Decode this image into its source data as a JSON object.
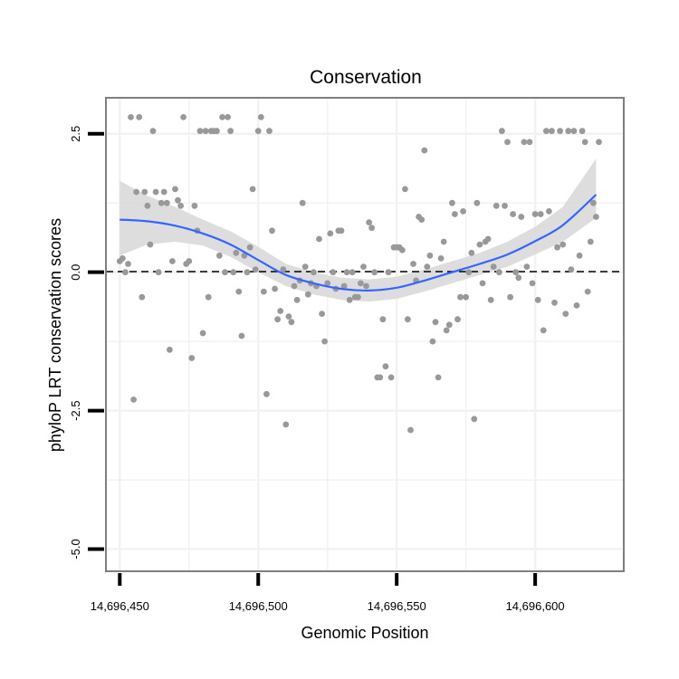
{
  "chart_data": {
    "type": "scatter",
    "title": "Conservation",
    "xlabel": "Genomic Position",
    "ylabel": "phyloP LRT conservation scores",
    "xlim": [
      14696445,
      14696632
    ],
    "ylim": [
      -5.4,
      3.15
    ],
    "x_ticks": [
      14696450,
      14696500,
      14696550,
      14696600
    ],
    "x_tick_labels": [
      "14,696,450",
      "14,696,500",
      "14,696,550",
      "14,696,600"
    ],
    "y_ticks": [
      2.5,
      0.0,
      -2.5,
      -5.0
    ],
    "y_tick_labels": [
      "2.5",
      "0.0",
      "-2.5",
      "-5.0"
    ],
    "grid": true,
    "reference_line": {
      "y": 0,
      "style": "dashed",
      "color": "#000000"
    },
    "colors": {
      "points": "#999999",
      "smooth": "#3366ff",
      "band": "#d9d9d9",
      "grid": "#f2f2f2",
      "frame": "#7f7f7f"
    },
    "series": [
      {
        "name": "phyloP score",
        "kind": "points",
        "points": [
          [
            14696450,
            0.2
          ],
          [
            14696451,
            0.25
          ],
          [
            14696452,
            0.0
          ],
          [
            14696453,
            0.15
          ],
          [
            14696454,
            2.8
          ],
          [
            14696455,
            -2.3
          ],
          [
            14696456,
            1.45
          ],
          [
            14696457,
            2.8
          ],
          [
            14696458,
            -0.45
          ],
          [
            14696459,
            1.45
          ],
          [
            14696460,
            1.2
          ],
          [
            14696461,
            0.5
          ],
          [
            14696462,
            2.55
          ],
          [
            14696463,
            1.45
          ],
          [
            14696464,
            0.0
          ],
          [
            14696465,
            1.25
          ],
          [
            14696466,
            1.45
          ],
          [
            14696467,
            1.25
          ],
          [
            14696468,
            -1.4
          ],
          [
            14696469,
            0.2
          ],
          [
            14696470,
            1.5
          ],
          [
            14696471,
            1.3
          ],
          [
            14696472,
            1.2
          ],
          [
            14696473,
            2.8
          ],
          [
            14696474,
            0.15
          ],
          [
            14696475,
            0.2
          ],
          [
            14696476,
            -1.55
          ],
          [
            14696477,
            1.2
          ],
          [
            14696478,
            0.75
          ],
          [
            14696479,
            2.55
          ],
          [
            14696480,
            -1.1
          ],
          [
            14696481,
            2.55
          ],
          [
            14696482,
            -0.45
          ],
          [
            14696483,
            2.55
          ],
          [
            14696484,
            2.55
          ],
          [
            14696485,
            2.55
          ],
          [
            14696486,
            0.3
          ],
          [
            14696487,
            2.8
          ],
          [
            14696488,
            0.0
          ],
          [
            14696489,
            2.8
          ],
          [
            14696490,
            2.55
          ],
          [
            14696491,
            0.0
          ],
          [
            14696492,
            0.35
          ],
          [
            14696493,
            -0.35
          ],
          [
            14696494,
            -1.15
          ],
          [
            14696495,
            0.3
          ],
          [
            14696496,
            0.0
          ],
          [
            14696497,
            0.45
          ],
          [
            14696498,
            1.5
          ],
          [
            14696499,
            0.05
          ],
          [
            14696500,
            2.55
          ],
          [
            14696501,
            2.8
          ],
          [
            14696502,
            -0.35
          ],
          [
            14696503,
            -2.2
          ],
          [
            14696504,
            2.55
          ],
          [
            14696505,
            0.75
          ],
          [
            14696506,
            -0.3
          ],
          [
            14696507,
            -0.85
          ],
          [
            14696508,
            -0.7
          ],
          [
            14696509,
            0.05
          ],
          [
            14696510,
            -2.75
          ],
          [
            14696511,
            -0.8
          ],
          [
            14696512,
            -0.9
          ],
          [
            14696513,
            -0.25
          ],
          [
            14696514,
            -0.5
          ],
          [
            14696515,
            -0.15
          ],
          [
            14696516,
            1.25
          ],
          [
            14696517,
            0.1
          ],
          [
            14696518,
            -0.4
          ],
          [
            14696519,
            -0.2
          ],
          [
            14696520,
            0.0
          ],
          [
            14696521,
            -0.25
          ],
          [
            14696522,
            0.6
          ],
          [
            14696523,
            -0.75
          ],
          [
            14696524,
            -1.25
          ],
          [
            14696525,
            -0.2
          ],
          [
            14696526,
            0.7
          ],
          [
            14696527,
            0.0
          ],
          [
            14696528,
            -0.3
          ],
          [
            14696529,
            0.75
          ],
          [
            14696530,
            0.75
          ],
          [
            14696531,
            -0.25
          ],
          [
            14696532,
            0.0
          ],
          [
            14696533,
            -0.5
          ],
          [
            14696534,
            0.0
          ],
          [
            14696535,
            -0.45
          ],
          [
            14696536,
            -0.45
          ],
          [
            14696537,
            -0.2
          ],
          [
            14696538,
            0.1
          ],
          [
            14696539,
            -0.25
          ],
          [
            14696540,
            0.9
          ],
          [
            14696541,
            0.8
          ],
          [
            14696542,
            0.0
          ],
          [
            14696543,
            -1.9
          ],
          [
            14696544,
            -1.9
          ],
          [
            14696545,
            -0.85
          ],
          [
            14696546,
            -1.7
          ],
          [
            14696547,
            0.0
          ],
          [
            14696548,
            -1.9
          ],
          [
            14696549,
            0.45
          ],
          [
            14696550,
            0.45
          ],
          [
            14696551,
            0.45
          ],
          [
            14696552,
            0.4
          ],
          [
            14696553,
            1.5
          ],
          [
            14696554,
            -0.85
          ],
          [
            14696555,
            -2.85
          ],
          [
            14696556,
            0.15
          ],
          [
            14696557,
            -0.15
          ],
          [
            14696558,
            1.0
          ],
          [
            14696559,
            0.95
          ],
          [
            14696560,
            2.2
          ],
          [
            14696561,
            0.1
          ],
          [
            14696562,
            0.3
          ],
          [
            14696563,
            -1.25
          ],
          [
            14696564,
            -0.9
          ],
          [
            14696565,
            -1.9
          ],
          [
            14696566,
            0.25
          ],
          [
            14696567,
            0.55
          ],
          [
            14696568,
            -1.05
          ],
          [
            14696569,
            -0.95
          ],
          [
            14696570,
            1.25
          ],
          [
            14696571,
            1.05
          ],
          [
            14696572,
            -0.85
          ],
          [
            14696573,
            -0.45
          ],
          [
            14696574,
            1.1
          ],
          [
            14696575,
            -0.45
          ],
          [
            14696576,
            0.0
          ],
          [
            14696577,
            0.35
          ],
          [
            14696578,
            -2.65
          ],
          [
            14696579,
            1.25
          ],
          [
            14696580,
            0.5
          ],
          [
            14696581,
            -0.2
          ],
          [
            14696582,
            0.55
          ],
          [
            14696583,
            0.6
          ],
          [
            14696584,
            -0.5
          ],
          [
            14696585,
            0.1
          ],
          [
            14696586,
            1.2
          ],
          [
            14696587,
            0.0
          ],
          [
            14696588,
            2.55
          ],
          [
            14696589,
            1.2
          ],
          [
            14696590,
            2.35
          ],
          [
            14696591,
            -0.45
          ],
          [
            14696592,
            1.05
          ],
          [
            14696593,
            0.0
          ],
          [
            14696594,
            -0.1
          ],
          [
            14696595,
            1.0
          ],
          [
            14696596,
            2.35
          ],
          [
            14696597,
            0.1
          ],
          [
            14696598,
            2.35
          ],
          [
            14696599,
            -0.2
          ],
          [
            14696600,
            1.05
          ],
          [
            14696601,
            -0.5
          ],
          [
            14696602,
            1.05
          ],
          [
            14696603,
            -1.05
          ],
          [
            14696604,
            2.55
          ],
          [
            14696605,
            1.1
          ],
          [
            14696606,
            2.55
          ],
          [
            14696607,
            -0.55
          ],
          [
            14696608,
            0.45
          ],
          [
            14696609,
            2.55
          ],
          [
            14696610,
            0.5
          ],
          [
            14696611,
            -0.75
          ],
          [
            14696612,
            2.55
          ],
          [
            14696613,
            0.05
          ],
          [
            14696614,
            2.55
          ],
          [
            14696615,
            -0.6
          ],
          [
            14696616,
            0.3
          ],
          [
            14696617,
            2.55
          ],
          [
            14696618,
            2.35
          ],
          [
            14696619,
            -0.35
          ],
          [
            14696620,
            0.55
          ],
          [
            14696621,
            1.25
          ],
          [
            14696622,
            1.0
          ],
          [
            14696623,
            2.35
          ]
        ]
      },
      {
        "name": "loess fit",
        "kind": "smooth",
        "x": [
          14696450,
          14696460,
          14696470,
          14696480,
          14696490,
          14696500,
          14696510,
          14696520,
          14696530,
          14696540,
          14696550,
          14696560,
          14696570,
          14696580,
          14696590,
          14696600,
          14696610,
          14696622
        ],
        "y": [
          0.95,
          0.92,
          0.84,
          0.7,
          0.5,
          0.22,
          -0.05,
          -0.2,
          -0.3,
          -0.33,
          -0.28,
          -0.15,
          0.0,
          0.15,
          0.32,
          0.56,
          0.85,
          1.4
        ],
        "lower": [
          0.3,
          0.5,
          0.55,
          0.48,
          0.28,
          0.0,
          -0.25,
          -0.4,
          -0.5,
          -0.53,
          -0.48,
          -0.35,
          -0.2,
          -0.05,
          0.1,
          0.32,
          0.55,
          0.98
        ],
        "upper": [
          1.65,
          1.38,
          1.18,
          0.95,
          0.74,
          0.46,
          0.15,
          0.0,
          -0.1,
          -0.13,
          -0.08,
          0.05,
          0.2,
          0.35,
          0.55,
          0.82,
          1.18,
          2.05
        ]
      }
    ]
  }
}
